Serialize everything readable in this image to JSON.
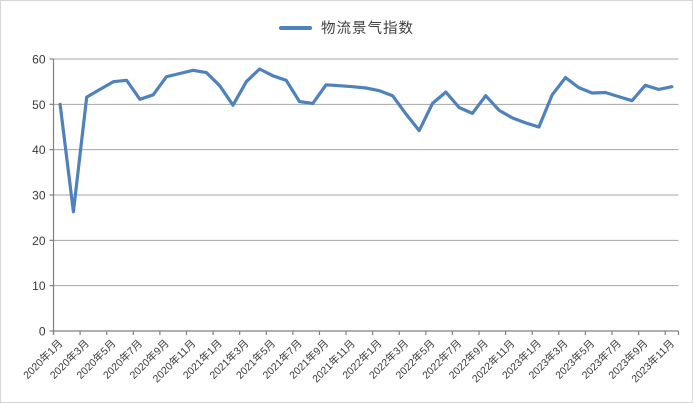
{
  "chart_data": {
    "type": "line",
    "title": "",
    "legend": "物流景气指数",
    "legend_position": "top-center",
    "grid": "horizontal",
    "ylim": [
      0,
      60
    ],
    "y_ticks": [
      0,
      10,
      20,
      30,
      40,
      50,
      60
    ],
    "x_tick_label_rotation": -45,
    "x_tick_interval": 2,
    "x": [
      "2020年1月",
      "2020年2月",
      "2020年3月",
      "2020年4月",
      "2020年5月",
      "2020年6月",
      "2020年7月",
      "2020年8月",
      "2020年9月",
      "2020年10月",
      "2020年11月",
      "2020年12月",
      "2021年1月",
      "2021年2月",
      "2021年3月",
      "2021年4月",
      "2021年5月",
      "2021年6月",
      "2021年7月",
      "2021年8月",
      "2021年9月",
      "2021年10月",
      "2021年11月",
      "2021年12月",
      "2022年1月",
      "2022年2月",
      "2022年3月",
      "2022年4月",
      "2022年5月",
      "2022年6月",
      "2022年7月",
      "2022年8月",
      "2022年9月",
      "2022年10月",
      "2022年11月",
      "2022年12月",
      "2023年1月",
      "2023年2月",
      "2023年3月",
      "2023年4月",
      "2023年5月",
      "2023年6月",
      "2023年7月",
      "2023年8月",
      "2023年9月",
      "2023年10月",
      "2023年11月"
    ],
    "values": [
      50.0,
      26.3,
      51.6,
      53.3,
      55.0,
      55.3,
      51.1,
      52.1,
      56.1,
      56.8,
      57.5,
      57.0,
      54.1,
      49.8,
      55.0,
      57.8,
      56.3,
      55.3,
      50.6,
      50.2,
      54.3,
      54.1,
      53.9,
      53.6,
      53.0,
      51.9,
      47.9,
      44.2,
      50.2,
      52.7,
      49.3,
      48.0,
      51.9,
      48.7,
      47.0,
      45.9,
      45.0,
      52.1,
      55.9,
      53.7,
      52.5,
      52.6,
      51.7,
      50.8,
      54.2,
      53.3,
      53.9
    ],
    "x_tick_labels": [
      "2020年1月",
      "2020年3月",
      "2020年5月",
      "2020年7月",
      "2020年9月",
      "2020年11月",
      "2021年1月",
      "2021年3月",
      "2021年5月",
      "2021年7月",
      "2021年9月",
      "2021年11月",
      "2022年1月",
      "2022年3月",
      "2022年5月",
      "2022年7月",
      "2022年9月",
      "2022年11月",
      "2023年1月",
      "2023年3月",
      "2023年5月",
      "2023年7月",
      "2023年9月",
      "2023年11月"
    ],
    "line_color": "#4F81BD",
    "gridline_color": "#A6A6A6",
    "axis_color": "#808080",
    "text_color": "#3a3a3a"
  }
}
